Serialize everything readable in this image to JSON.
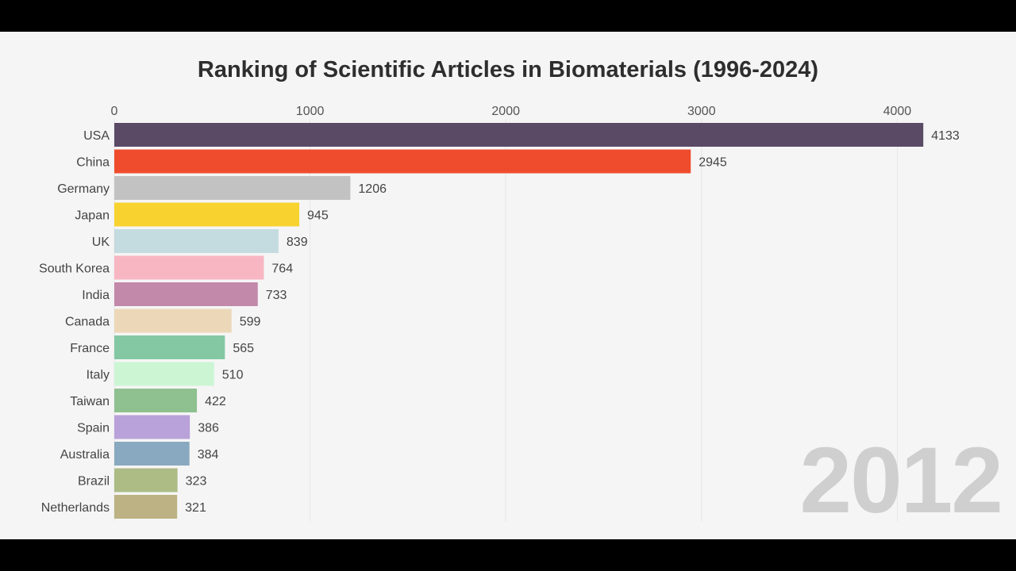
{
  "chart_data": {
    "type": "bar",
    "orientation": "horizontal",
    "title": "Ranking of Scientific Articles in Biomaterials (1996-2024)",
    "period_label": "2012",
    "xlim": [
      0,
      4150
    ],
    "x_ticks": [
      0,
      1000,
      2000,
      3000,
      4000
    ],
    "x_axis_position": "top",
    "grid": true,
    "categories": [
      "USA",
      "China",
      "Germany",
      "Japan",
      "UK",
      "South Korea",
      "India",
      "Canada",
      "France",
      "Italy",
      "Taiwan",
      "Spain",
      "Australia",
      "Brazil",
      "Netherlands"
    ],
    "values": [
      4133,
      2945,
      1206,
      945,
      839,
      764,
      733,
      599,
      565,
      510,
      422,
      386,
      384,
      323,
      321
    ],
    "colors": [
      "#5b4a66",
      "#ef4c2d",
      "#c2c2c2",
      "#f8d22e",
      "#c4dbe0",
      "#f8b6c3",
      "#c289aa",
      "#ecd8b8",
      "#84c8a3",
      "#ccf5d4",
      "#8fc090",
      "#b9a1d9",
      "#88a9bf",
      "#adbb85",
      "#bcb283"
    ]
  }
}
